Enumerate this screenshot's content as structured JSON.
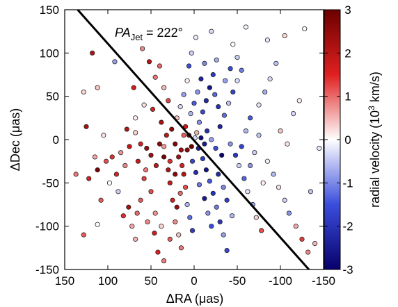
{
  "chart_data": {
    "type": "scatter",
    "xlabel": "ΔRA (μas)",
    "ylabel": "ΔDec (μas)",
    "x_reversed": true,
    "xlim": [
      150,
      -150
    ],
    "ylim": [
      -150,
      150
    ],
    "x_ticks": [
      150,
      100,
      50,
      0,
      -50,
      -100,
      -150
    ],
    "y_ticks": [
      150,
      100,
      50,
      0,
      -50,
      -100,
      -150
    ],
    "x_tick_labels": [
      "150",
      "100",
      "50",
      "0",
      "-50",
      "-100",
      "-150"
    ],
    "y_tick_labels": [
      "150",
      "100",
      "50",
      "0",
      "-50",
      "-100",
      "-150"
    ],
    "grid": false,
    "annotation": {
      "pa_italic": "PA",
      "pa_subscript": "Jet",
      "pa_value": "= 222°"
    },
    "jet_line": {
      "pa_deg": 222,
      "points": [
        [
          135,
          150
        ],
        [
          -133,
          -150
        ]
      ]
    },
    "colorbar": {
      "label": "radial velocity (10³ km/s)",
      "label_pre": "radial velocity (10",
      "label_sup": "3",
      "label_post": " km/s)",
      "range": [
        -3,
        3
      ],
      "ticks": [
        3,
        2,
        1,
        0,
        -1,
        -2,
        -3
      ],
      "tick_labels": [
        "3",
        "2",
        "1",
        "0",
        "-1",
        "-2",
        "-3"
      ],
      "colors": {
        "low": "#08006b",
        "mid_low": "#3a4ddc",
        "zero": "#ffffff",
        "mid_high": "#e02020",
        "high": "#6b0000"
      }
    },
    "points": [
      [
        118,
        100,
        2.1
      ],
      [
        112,
        60,
        0.4
      ],
      [
        128,
        55,
        0.3
      ],
      [
        125,
        15,
        2.2
      ],
      [
        105,
        5,
        0.2
      ],
      [
        137,
        -40,
        0.9
      ],
      [
        122,
        -45,
        1.6
      ],
      [
        112,
        -35,
        2.8
      ],
      [
        108,
        -70,
        1.1
      ],
      [
        112,
        -98,
        0.0
      ],
      [
        128,
        -110,
        1.1
      ],
      [
        95,
        -20,
        1.4
      ],
      [
        88,
        -60,
        -0.4
      ],
      [
        80,
        -30,
        0.8
      ],
      [
        78,
        12,
        2.1
      ],
      [
        70,
        60,
        1.7
      ],
      [
        72,
        -100,
        0.6
      ],
      [
        68,
        -115,
        0.5
      ],
      [
        55,
        -10,
        2.4
      ],
      [
        50,
        -60,
        1.2
      ],
      [
        45,
        -85,
        0.7
      ],
      [
        42,
        -130,
        1.5
      ],
      [
        35,
        -140,
        0.9
      ],
      [
        60,
        105,
        0.8
      ],
      [
        40,
        85,
        1.0
      ],
      [
        92,
        90,
        -0.8
      ],
      [
        65,
        -25,
        1.8
      ],
      [
        58,
        -45,
        1.3
      ],
      [
        62,
        -70,
        1.1
      ],
      [
        48,
        35,
        1.5
      ],
      [
        38,
        20,
        2.2
      ],
      [
        35,
        -20,
        2.9
      ],
      [
        30,
        -35,
        2.1
      ],
      [
        28,
        -50,
        1.8
      ],
      [
        25,
        -70,
        1.6
      ],
      [
        22,
        -95,
        0.8
      ],
      [
        18,
        -110,
        0.4
      ],
      [
        15,
        -125,
        0.9
      ],
      [
        40,
        -5,
        2.6
      ],
      [
        32,
        5,
        1.9
      ],
      [
        26,
        12,
        2.5
      ],
      [
        22,
        -5,
        2.7
      ],
      [
        18,
        -20,
        2.2
      ],
      [
        14,
        -30,
        1.6
      ],
      [
        12,
        -40,
        2.0
      ],
      [
        10,
        -55,
        1.2
      ],
      [
        8,
        -75,
        -0.6
      ],
      [
        5,
        -90,
        -1.2
      ],
      [
        2,
        -105,
        -1.8
      ],
      [
        20,
        25,
        0.4
      ],
      [
        16,
        38,
        -0.3
      ],
      [
        12,
        52,
        -0.8
      ],
      [
        8,
        68,
        0.1
      ],
      [
        6,
        85,
        -1.5
      ],
      [
        3,
        100,
        -0.4
      ],
      [
        -2,
        118,
        -0.2
      ],
      [
        10,
        15,
        1.8
      ],
      [
        6,
        5,
        2.8
      ],
      [
        3,
        -8,
        3.0
      ],
      [
        -3,
        8,
        0.5
      ],
      [
        -6,
        20,
        -0.9
      ],
      [
        -10,
        32,
        -1.6
      ],
      [
        -14,
        45,
        -2.2
      ],
      [
        -18,
        60,
        -2.6
      ],
      [
        -22,
        75,
        -1.9
      ],
      [
        -26,
        92,
        -0.7
      ],
      [
        -5,
        -10,
        -2.4
      ],
      [
        -10,
        -22,
        -1.8
      ],
      [
        -14,
        -35,
        -2.6
      ],
      [
        -18,
        -48,
        -1.4
      ],
      [
        -22,
        -62,
        -2.0
      ],
      [
        -26,
        -78,
        -1.1
      ],
      [
        -30,
        -95,
        -1.9
      ],
      [
        -34,
        -110,
        -0.8
      ],
      [
        -38,
        -128,
        -1.6
      ],
      [
        -8,
        2,
        -2.8
      ],
      [
        -15,
        10,
        -2.1
      ],
      [
        -20,
        0,
        -0.8
      ],
      [
        -25,
        -10,
        -1.5
      ],
      [
        -30,
        15,
        -2.3
      ],
      [
        -35,
        28,
        -1.2
      ],
      [
        -40,
        42,
        -0.5
      ],
      [
        -45,
        55,
        -1.7
      ],
      [
        -50,
        68,
        -0.3
      ],
      [
        -55,
        80,
        -1.1
      ],
      [
        -42,
        -5,
        -0.9
      ],
      [
        -48,
        -18,
        -1.9
      ],
      [
        -52,
        -30,
        -0.4
      ],
      [
        -58,
        -45,
        -1.3
      ],
      [
        -62,
        -60,
        -0.2
      ],
      [
        -68,
        -75,
        -0.8
      ],
      [
        -72,
        -90,
        0.3
      ],
      [
        -78,
        -105,
        1.2
      ],
      [
        -60,
        10,
        -0.6
      ],
      [
        -65,
        25,
        -1.4
      ],
      [
        -75,
        40,
        -0.2
      ],
      [
        -82,
        55,
        -0.7
      ],
      [
        -88,
        70,
        -0.3
      ],
      [
        -95,
        88,
        -0.5
      ],
      [
        -70,
        -15,
        -0.4
      ],
      [
        -85,
        -25,
        -0.1
      ],
      [
        -92,
        -40,
        -0.6
      ],
      [
        -98,
        -55,
        0.2
      ],
      [
        -105,
        -70,
        -0.4
      ],
      [
        -110,
        -85,
        -0.9
      ],
      [
        -118,
        -100,
        0.6
      ],
      [
        -125,
        -115,
        1.3
      ],
      [
        -132,
        -130,
        0.8
      ],
      [
        -140,
        -120,
        0.5
      ],
      [
        -115,
        30,
        -0.3
      ],
      [
        -122,
        45,
        0.1
      ],
      [
        -128,
        128,
        0.0
      ],
      [
        -105,
        120,
        0.3
      ],
      [
        -85,
        115,
        -0.2
      ],
      [
        -45,
        110,
        0.0
      ],
      [
        -60,
        130,
        -0.1
      ],
      [
        -20,
        125,
        -0.3
      ],
      [
        -100,
        10,
        0.4
      ],
      [
        -108,
        -5,
        0.2
      ],
      [
        -135,
        -60,
        -0.5
      ],
      [
        -145,
        -10,
        -0.2
      ],
      [
        30,
        45,
        1.3
      ],
      [
        35,
        60,
        0.5
      ],
      [
        45,
        72,
        0.9
      ],
      [
        52,
        90,
        2.0
      ],
      [
        58,
        40,
        0.2
      ],
      [
        68,
        25,
        0.1
      ],
      [
        75,
        -8,
        1.9
      ],
      [
        85,
        -15,
        0.7
      ],
      [
        90,
        -40,
        1.5
      ],
      [
        98,
        -50,
        0.0
      ],
      [
        102,
        -25,
        1.2
      ],
      [
        115,
        -20,
        0.6
      ],
      [
        82,
        -88,
        1.4
      ],
      [
        76,
        -78,
        2.2
      ],
      [
        66,
        -85,
        1.0
      ],
      [
        54,
        -95,
        0.8
      ],
      [
        46,
        -108,
        1.7
      ],
      [
        38,
        -100,
        0.3
      ],
      [
        28,
        -115,
        1.1
      ],
      [
        20,
        -78,
        2.4
      ],
      [
        16,
        -62,
        1.0
      ],
      [
        22,
        -40,
        2.6
      ],
      [
        28,
        -25,
        1.4
      ],
      [
        35,
        -8,
        0.7
      ],
      [
        44,
        -30,
        1.9
      ],
      [
        50,
        -18,
        2.3
      ],
      [
        56,
        -35,
        0.9
      ],
      [
        62,
        -5,
        1.6
      ],
      [
        68,
        8,
        0.3
      ],
      [
        4,
        30,
        -0.6
      ],
      [
        0,
        42,
        -1.4
      ],
      [
        -4,
        55,
        -0.9
      ],
      [
        -8,
        70,
        -2.3
      ],
      [
        -12,
        88,
        -1.0
      ],
      [
        2,
        -25,
        -1.6
      ],
      [
        -2,
        -38,
        -2.1
      ],
      [
        -6,
        -52,
        -1.1
      ],
      [
        -12,
        -68,
        -2.5
      ],
      [
        -16,
        -85,
        -0.9
      ],
      [
        -20,
        -100,
        -1.5
      ],
      [
        -28,
        -40,
        -2.2
      ],
      [
        -34,
        -55,
        -1.0
      ],
      [
        -38,
        -70,
        -1.8
      ],
      [
        -44,
        -88,
        -0.6
      ],
      [
        -32,
        -18,
        -2.9
      ],
      [
        -28,
        38,
        -2.0
      ],
      [
        -24,
        52,
        -1.3
      ],
      [
        -36,
        68,
        -0.8
      ],
      [
        -42,
        82,
        -1.5
      ],
      [
        -50,
        95,
        -0.4
      ],
      [
        -55,
        -8,
        -1.7
      ],
      [
        -65,
        -30,
        -0.9
      ],
      [
        -75,
        5,
        -0.5
      ],
      [
        -80,
        -50,
        0.1
      ],
      [
        12,
        5,
        1.1
      ],
      [
        -1,
        2,
        -0.3
      ],
      [
        8,
        -12,
        2.6
      ],
      [
        -12,
        -5,
        -2.5
      ],
      [
        15,
        -12,
        2.3
      ]
    ]
  }
}
